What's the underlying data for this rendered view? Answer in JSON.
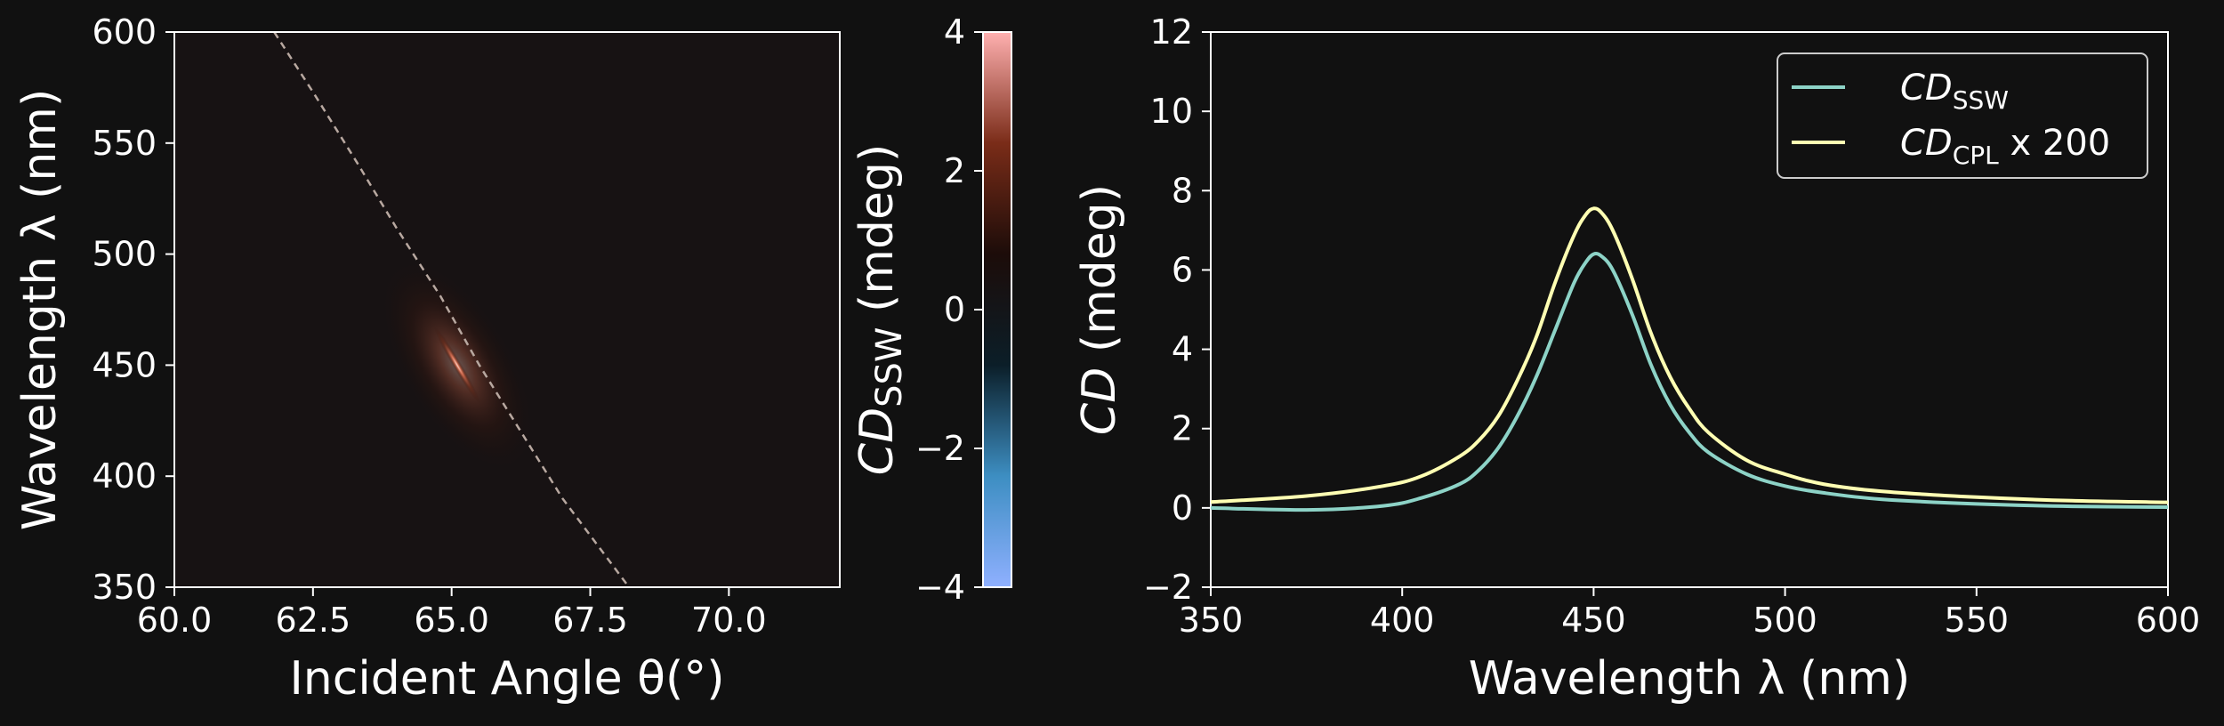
{
  "figure": {
    "background": "#111111"
  },
  "chart_data": [
    {
      "type": "heatmap",
      "xlabel": "Incident Angle θ(°)",
      "ylabel": "Wavelength λ (nm)",
      "xlim": [
        60.0,
        72.0
      ],
      "ylim": [
        350,
        600
      ],
      "x_ticks": [
        "60.0",
        "62.5",
        "65.0",
        "67.5",
        "70.0"
      ],
      "x_tick_values": [
        60.0,
        62.5,
        65.0,
        67.5,
        70.0
      ],
      "y_ticks": [
        "350",
        "400",
        "450",
        "500",
        "550",
        "600"
      ],
      "y_tick_values": [
        350,
        400,
        450,
        500,
        550,
        600
      ],
      "background_value": 0.3,
      "hotspot": {
        "angle": 65.1,
        "wavelength": 450,
        "peak_value": 4.0
      },
      "dashed_curve": {
        "color": "#b8a8a0",
        "points": [
          [
            61.8,
            600
          ],
          [
            62.5,
            573
          ],
          [
            63.3,
            541
          ],
          [
            64.0,
            512
          ],
          [
            64.8,
            481
          ],
          [
            65.5,
            450
          ],
          [
            66.2,
            422
          ],
          [
            67.0,
            390
          ],
          [
            67.6,
            370
          ],
          [
            68.2,
            350
          ]
        ]
      },
      "colorbar": {
        "label_main": "CD",
        "label_sub": "SSW",
        "label_unit": " (mdeg)",
        "range": [
          -4,
          4
        ],
        "ticks": [
          "4",
          "2",
          "0",
          "−2",
          "−4"
        ],
        "tick_values": [
          4,
          2,
          0,
          -2,
          -4
        ],
        "colors": [
          "#8fb0ff",
          "#3d8ec2",
          "#0b1e28",
          "#1c0c09",
          "#7a2c18",
          "#ffb0b0"
        ]
      }
    },
    {
      "type": "line",
      "xlabel": "Wavelength λ (nm)",
      "ylabel_main": "CD",
      "ylabel_unit": " (mdeg)",
      "xlim": [
        350,
        600
      ],
      "ylim": [
        -2,
        12
      ],
      "x_ticks": [
        "350",
        "400",
        "450",
        "500",
        "550",
        "600"
      ],
      "x_tick_values": [
        350,
        400,
        450,
        500,
        550,
        600
      ],
      "y_ticks": [
        "−2",
        "0",
        "2",
        "4",
        "6",
        "8",
        "10",
        "12"
      ],
      "y_tick_values": [
        -2,
        0,
        2,
        4,
        6,
        8,
        10,
        12
      ],
      "legend_position": "top-right",
      "series": [
        {
          "name_main": "CD",
          "name_sub": "SSW",
          "name_suffix": "",
          "color": "#8dd3c7",
          "x": [
            350,
            375,
            395,
            405,
            415,
            420,
            425,
            430,
            435,
            440,
            445,
            448,
            450,
            452,
            455,
            460,
            465,
            470,
            475,
            480,
            490,
            500,
            510,
            525,
            550,
            575,
            600
          ],
          "y": [
            0.0,
            -0.05,
            0.05,
            0.25,
            0.6,
            0.95,
            1.5,
            2.3,
            3.3,
            4.5,
            5.7,
            6.2,
            6.4,
            6.35,
            6.0,
            4.9,
            3.6,
            2.6,
            1.9,
            1.4,
            0.85,
            0.55,
            0.38,
            0.22,
            0.1,
            0.04,
            0.02
          ]
        },
        {
          "name_main": "CD",
          "name_sub": "CPL",
          "name_suffix": " x 200",
          "color": "#ffffb3",
          "x": [
            350,
            375,
            395,
            405,
            415,
            420,
            425,
            430,
            435,
            440,
            445,
            448,
            450,
            452,
            455,
            460,
            465,
            470,
            475,
            480,
            490,
            500,
            510,
            525,
            550,
            575,
            600
          ],
          "y": [
            0.15,
            0.3,
            0.55,
            0.8,
            1.3,
            1.7,
            2.3,
            3.2,
            4.3,
            5.7,
            6.9,
            7.4,
            7.55,
            7.45,
            7.0,
            5.8,
            4.4,
            3.3,
            2.5,
            1.9,
            1.2,
            0.85,
            0.6,
            0.42,
            0.27,
            0.18,
            0.14
          ]
        }
      ]
    }
  ]
}
